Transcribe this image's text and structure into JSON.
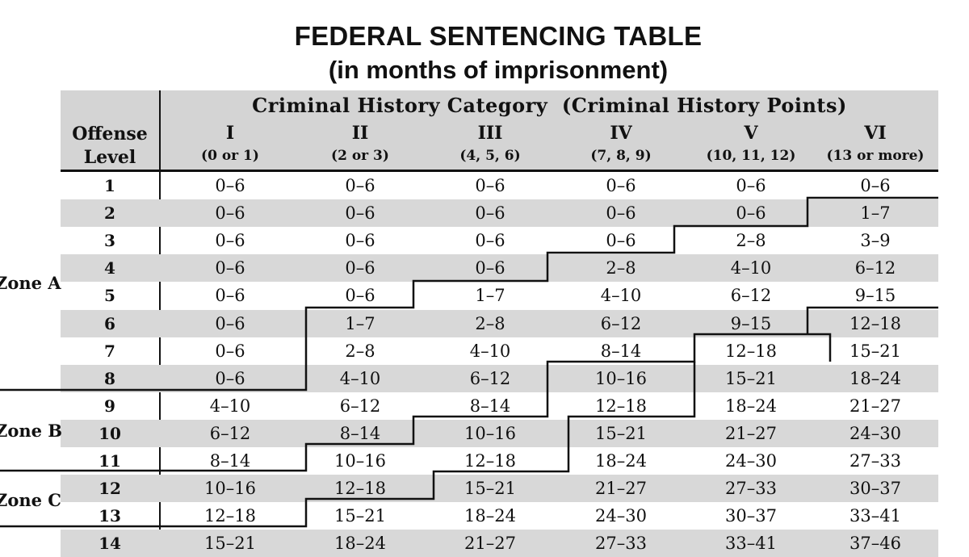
{
  "title": "FEDERAL SENTENCING TABLE",
  "subtitle": "(in months of imprisonment)",
  "header": {
    "criminal_history_title": "Criminal History Category  (Criminal History Points)",
    "offense_level_line1": "Offense",
    "offense_level_line2": "Level",
    "categories": [
      {
        "numeral": "I",
        "points": "(0 or 1)"
      },
      {
        "numeral": "II",
        "points": "(2 or 3)"
      },
      {
        "numeral": "III",
        "points": "(4, 5, 6)"
      },
      {
        "numeral": "IV",
        "points": "(7, 8, 9)"
      },
      {
        "numeral": "V",
        "points": "(10, 11, 12)"
      },
      {
        "numeral": "VI",
        "points": "(13 or more)"
      }
    ]
  },
  "zones": [
    {
      "label": "Zone A"
    },
    {
      "label": "Zone B"
    },
    {
      "label": "Zone C"
    }
  ],
  "rows": [
    {
      "level": "1",
      "cells": [
        "0–6",
        "0–6",
        "0–6",
        "0–6",
        "0–6",
        "0–6"
      ]
    },
    {
      "level": "2",
      "cells": [
        "0–6",
        "0–6",
        "0–6",
        "0–6",
        "0–6",
        "1–7"
      ]
    },
    {
      "level": "3",
      "cells": [
        "0–6",
        "0–6",
        "0–6",
        "0–6",
        "2–8",
        "3–9"
      ]
    },
    {
      "level": "4",
      "cells": [
        "0–6",
        "0–6",
        "0–6",
        "2–8",
        "4–10",
        "6–12"
      ]
    },
    {
      "level": "5",
      "cells": [
        "0–6",
        "0–6",
        "1–7",
        "4–10",
        "6–12",
        "9–15"
      ]
    },
    {
      "level": "6",
      "cells": [
        "0–6",
        "1–7",
        "2–8",
        "6–12",
        "9–15",
        "12–18"
      ]
    },
    {
      "level": "7",
      "cells": [
        "0–6",
        "2–8",
        "4–10",
        "8–14",
        "12–18",
        "15–21"
      ]
    },
    {
      "level": "8",
      "cells": [
        "0–6",
        "4–10",
        "6–12",
        "10–16",
        "15–21",
        "18–24"
      ]
    },
    {
      "level": "9",
      "cells": [
        "4–10",
        "6–12",
        "8–14",
        "12–18",
        "18–24",
        "21–27"
      ]
    },
    {
      "level": "10",
      "cells": [
        "6–12",
        "8–14",
        "10–16",
        "15–21",
        "21–27",
        "24–30"
      ]
    },
    {
      "level": "11",
      "cells": [
        "8–14",
        "10–16",
        "12–18",
        "18–24",
        "24–30",
        "27–33"
      ]
    },
    {
      "level": "12",
      "cells": [
        "10–16",
        "12–18",
        "15–21",
        "21–27",
        "27–33",
        "30–37"
      ]
    },
    {
      "level": "13",
      "cells": [
        "12–18",
        "15–21",
        "18–24",
        "24–30",
        "30–37",
        "33–41"
      ]
    },
    {
      "level": "14",
      "cells": [
        "15–21",
        "18–24",
        "21–27",
        "27–33",
        "33–41",
        "37–46"
      ]
    }
  ]
}
